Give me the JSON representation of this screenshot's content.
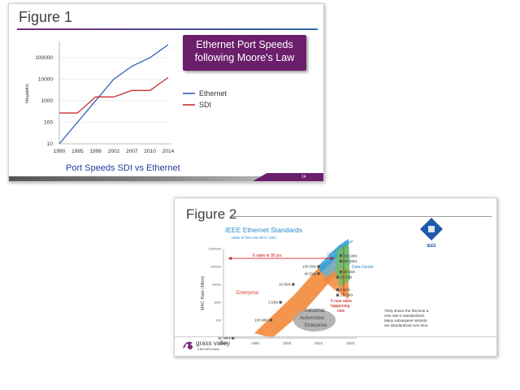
{
  "slide1": {
    "title": "Figure 1",
    "callout_line1": "Ethernet Port Speeds",
    "callout_line2": "following Moore's Law",
    "caption": "Port Speeds SDI vs Ethernet",
    "page_number": "14",
    "colors": {
      "ethernet": "#3060b8",
      "sdi": "#c83030",
      "callout_bg": "#6b1f6b",
      "caption": "#2a3a9c"
    }
  },
  "slide2": {
    "title": "Figure 2",
    "heading": "IEEE Ethernet Standards",
    "subheading": "(date of first new MAC rate)",
    "logo_text": "IEEE",
    "footnote_line1": "¹Only shows the first time a",
    "footnote_line2": "new rate is standardized.",
    "footnote_line3": "Many subsequent variants",
    "footnote_line4": "are standardized over time.",
    "brand_name": "grass valley",
    "brand_sub": "a BELDEN brand"
  },
  "chart_data": [
    {
      "type": "line",
      "title": "",
      "xlabel": "",
      "ylabel": "Megabit/s",
      "yscale": "log",
      "categories": [
        "1990",
        "1995",
        "1998",
        "2002",
        "2007",
        "2010",
        "2014"
      ],
      "yticks": [
        "10",
        "100",
        "1000",
        "10000",
        "100000"
      ],
      "ylim": [
        10,
        400000
      ],
      "series": [
        {
          "name": "Ethernet",
          "values": [
            10,
            100,
            1000,
            10000,
            40000,
            100000,
            400000
          ]
        },
        {
          "name": "SDI",
          "values": [
            270,
            270,
            1500,
            1500,
            3000,
            3000,
            12000
          ]
        }
      ],
      "legend": "right"
    },
    {
      "type": "scatter",
      "title": "IEEE Ethernet Standards",
      "subtitle": "(date of first new MAC rate)",
      "xlabel": "",
      "ylabel": "MAC Rate (Mb/s)",
      "yscale": "log",
      "xticks": [
        "1980",
        "1990",
        "2000",
        "2010",
        "2020"
      ],
      "yticks": [
        "10",
        "100",
        "1000",
        "10000",
        "100000",
        "1000000"
      ],
      "xlim": [
        1980,
        2022
      ],
      "ylim": [
        10,
        1000000
      ],
      "points": [
        {
          "x": 1983,
          "y": 10,
          "label": "10 Mb/s"
        },
        {
          "x": 1995,
          "y": 100,
          "label": "100 Mb/s"
        },
        {
          "x": 1998,
          "y": 1000,
          "label": "1 Gb/s"
        },
        {
          "x": 2002,
          "y": 10000,
          "label": "10 Gb/s"
        },
        {
          "x": 2010,
          "y": 40000,
          "label": "40 Gb/s"
        },
        {
          "x": 2010,
          "y": 100000,
          "label": "100 Gb/s"
        },
        {
          "x": 2016,
          "y": 2500,
          "label": "2.5 Gb/s"
        },
        {
          "x": 2016,
          "y": 5000,
          "label": "5 Gb/s"
        },
        {
          "x": 2016,
          "y": 25000,
          "label": "25 Gb/s"
        },
        {
          "x": 2017,
          "y": 50000,
          "label": "50 Gb/s"
        },
        {
          "x": 2017,
          "y": 200000,
          "label": "200 Gb/s"
        },
        {
          "x": 2017,
          "y": 400000,
          "label": "400 Gb/s"
        }
      ],
      "regions": [
        "Enterprise",
        "Data Center",
        "Service Provider",
        "Industrial Automotive Enterprise"
      ],
      "annotations": [
        "6 rates in 35 yrs",
        "6 new rates happening now"
      ]
    }
  ]
}
